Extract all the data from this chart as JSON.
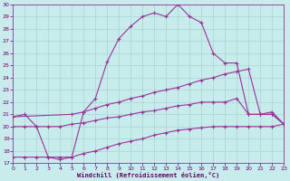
{
  "xlabel": "Windchill (Refroidissement éolien,°C)",
  "bg_color": "#c8ecec",
  "grid_color": "#a8d4d4",
  "line_color": "#993399",
  "x_ticks": [
    0,
    1,
    2,
    3,
    4,
    5,
    6,
    7,
    8,
    9,
    10,
    11,
    12,
    13,
    14,
    15,
    16,
    17,
    18,
    19,
    20,
    21,
    22,
    23
  ],
  "y_ticks": [
    17,
    18,
    19,
    20,
    21,
    22,
    23,
    24,
    25,
    26,
    27,
    28,
    29,
    30
  ],
  "ylim": [
    17,
    30
  ],
  "xlim": [
    0,
    23
  ],
  "curve1_x": [
    0,
    1,
    2,
    3,
    4,
    5,
    6,
    7,
    8,
    9,
    10,
    11,
    12,
    13,
    14,
    15,
    16,
    17,
    18,
    19,
    20,
    21,
    22,
    23
  ],
  "curve1_y": [
    20.8,
    21.0,
    20.0,
    17.5,
    17.3,
    17.5,
    21.2,
    22.3,
    25.3,
    27.2,
    28.2,
    29.0,
    29.3,
    29.0,
    30.0,
    29.0,
    28.5,
    26.0,
    25.2,
    25.2,
    21.0,
    21.0,
    21.0,
    20.2
  ],
  "curve2_x": [
    0,
    5,
    6,
    7,
    8,
    9,
    10,
    11,
    12,
    13,
    14,
    15,
    16,
    17,
    18,
    19,
    20,
    21,
    22,
    23
  ],
  "curve2_y": [
    20.8,
    21.0,
    21.2,
    21.5,
    21.8,
    22.0,
    22.3,
    22.5,
    22.8,
    23.0,
    23.2,
    23.5,
    23.8,
    24.0,
    24.3,
    24.5,
    24.7,
    21.0,
    21.2,
    20.2
  ],
  "curve3_x": [
    0,
    1,
    2,
    3,
    4,
    5,
    6,
    7,
    8,
    9,
    10,
    11,
    12,
    13,
    14,
    15,
    16,
    17,
    18,
    19,
    20,
    21,
    22,
    23
  ],
  "curve3_y": [
    20.0,
    20.0,
    20.0,
    20.0,
    20.0,
    20.2,
    20.3,
    20.5,
    20.7,
    20.8,
    21.0,
    21.2,
    21.3,
    21.5,
    21.7,
    21.8,
    22.0,
    22.0,
    22.0,
    22.3,
    21.0,
    21.0,
    21.0,
    20.2
  ],
  "curve4_x": [
    0,
    1,
    2,
    3,
    4,
    5,
    6,
    7,
    8,
    9,
    10,
    11,
    12,
    13,
    14,
    15,
    16,
    17,
    18,
    19,
    20,
    21,
    22,
    23
  ],
  "curve4_y": [
    17.5,
    17.5,
    17.5,
    17.5,
    17.5,
    17.5,
    17.8,
    18.0,
    18.3,
    18.6,
    18.8,
    19.0,
    19.3,
    19.5,
    19.7,
    19.8,
    19.9,
    20.0,
    20.0,
    20.0,
    20.0,
    20.0,
    20.0,
    20.2
  ]
}
